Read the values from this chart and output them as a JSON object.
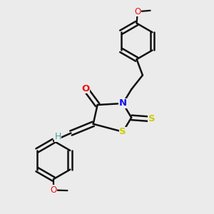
{
  "bg_color": "#ebebeb",
  "atom_colors": {
    "C": "#000000",
    "N": "#1010ee",
    "O": "#ee1010",
    "S": "#cccc00",
    "H": "#4a9a9a"
  },
  "bond_color": "#111111",
  "bond_width": 1.8,
  "figsize": [
    3.0,
    3.0
  ],
  "dpi": 100,
  "xlim": [
    0.0,
    1.0
  ],
  "ylim": [
    0.0,
    1.0
  ]
}
